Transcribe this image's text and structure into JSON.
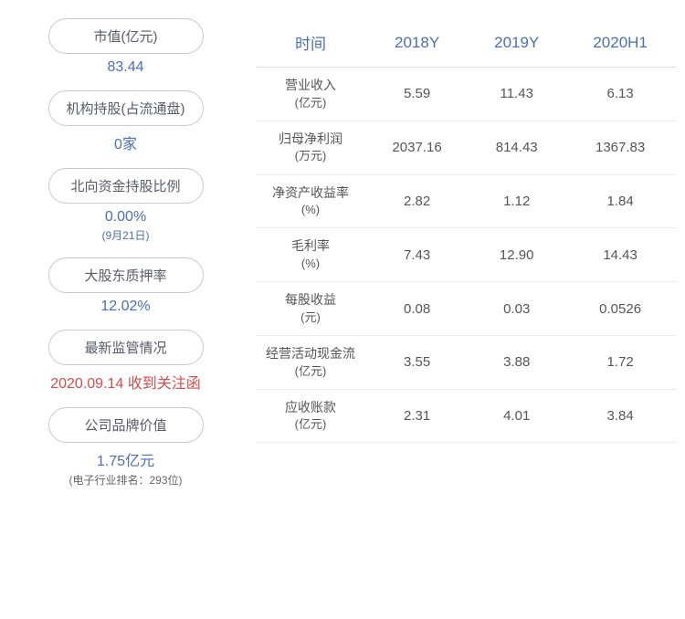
{
  "colors": {
    "header_blue": "#4a6fb3",
    "value_blue": "#4a6fb3",
    "value_red": "#d94a4a",
    "text_gray": "#5a5a6a",
    "note_gray": "#666666",
    "cell_gray": "#555555"
  },
  "left": {
    "items": [
      {
        "label": "市值(亿元)",
        "value": "83.44",
        "value_color": "#4a6fb3",
        "note": ""
      },
      {
        "label": "机构持股(占流通盘)",
        "value": "0家",
        "value_color": "#4a6fb3",
        "note": ""
      },
      {
        "label": "北向资金持股比例",
        "value": "0.00%",
        "value_color": "#4a6fb3",
        "note": "(9月21日)",
        "note_color": "#4a6fb3"
      },
      {
        "label": "大股东质押率",
        "value": "12.02%",
        "value_color": "#4a6fb3",
        "note": ""
      },
      {
        "label": "最新监管情况",
        "value": "2020.09.14 收到关注函",
        "value_color": "#d94a4a",
        "note": ""
      },
      {
        "label": "公司品牌价值",
        "value": "1.75亿元",
        "value_color": "#4a6fb3",
        "note": "(电子行业排名：293位)",
        "note_color": "#666666"
      }
    ]
  },
  "table": {
    "header_color": "#4a6fb3",
    "columns": [
      "时间",
      "2018Y",
      "2019Y",
      "2020H1"
    ],
    "rows": [
      {
        "label_main": "营业收入",
        "label_unit": "(亿元)",
        "cells": [
          "5.59",
          "11.43",
          "6.13"
        ]
      },
      {
        "label_main": "归母净利润",
        "label_unit": "(万元)",
        "cells": [
          "2037.16",
          "814.43",
          "1367.83"
        ]
      },
      {
        "label_main": "净资产收益率",
        "label_unit": "(%)",
        "cells": [
          "2.82",
          "1.12",
          "1.84"
        ]
      },
      {
        "label_main": "毛利率",
        "label_unit": "(%)",
        "cells": [
          "7.43",
          "12.90",
          "14.43"
        ]
      },
      {
        "label_main": "每股收益",
        "label_unit": "(元)",
        "cells": [
          "0.08",
          "0.03",
          "0.0526"
        ]
      },
      {
        "label_main": "经营活动现金流",
        "label_unit": "(亿元)",
        "cells": [
          "3.55",
          "3.88",
          "1.72"
        ]
      },
      {
        "label_main": "应收账款",
        "label_unit": "(亿元)",
        "cells": [
          "2.31",
          "4.01",
          "3.84"
        ]
      }
    ]
  }
}
